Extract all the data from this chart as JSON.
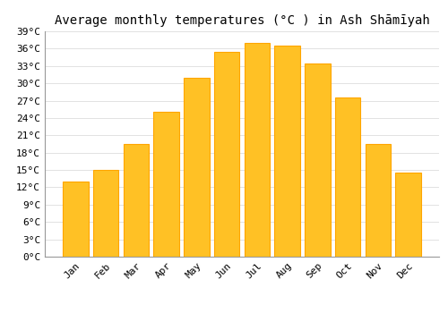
{
  "title": "Average monthly temperatures (°C ) in Ash Shāmīyah",
  "months": [
    "Jan",
    "Feb",
    "Mar",
    "Apr",
    "May",
    "Jun",
    "Jul",
    "Aug",
    "Sep",
    "Oct",
    "Nov",
    "Dec"
  ],
  "values": [
    13,
    15,
    19.5,
    25,
    31,
    35.5,
    37,
    36.5,
    33.5,
    27.5,
    19.5,
    14.5
  ],
  "bar_color": "#FFC125",
  "bar_edge_color": "#FFA500",
  "bar_edge_top_color": "#E08000",
  "ylim": [
    0,
    39
  ],
  "yticks": [
    0,
    3,
    6,
    9,
    12,
    15,
    18,
    21,
    24,
    27,
    30,
    33,
    36,
    39
  ],
  "ytick_labels": [
    "0°C",
    "3°C",
    "6°C",
    "9°C",
    "12°C",
    "15°C",
    "18°C",
    "21°C",
    "24°C",
    "27°C",
    "30°C",
    "33°C",
    "36°C",
    "39°C"
  ],
  "grid_color": "#dddddd",
  "bg_color": "#ffffff",
  "font_family": "monospace",
  "title_fontsize": 10,
  "tick_fontsize": 8,
  "bar_width": 0.85
}
